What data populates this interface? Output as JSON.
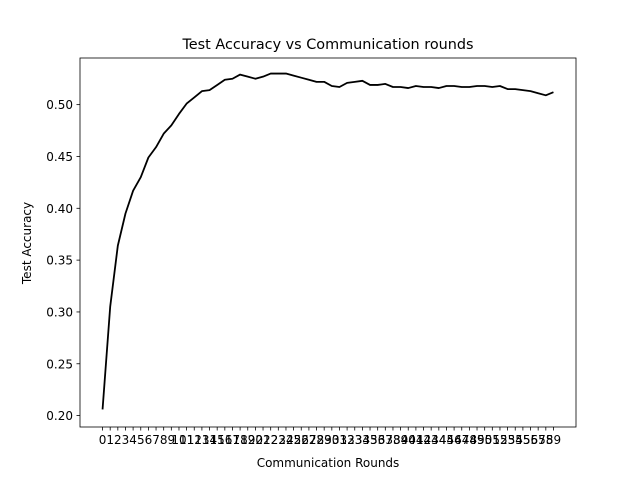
{
  "chart_data": {
    "type": "line",
    "title": "Test Accuracy vs Communication rounds",
    "xlabel": "Communication Rounds",
    "ylabel": "Test Accuracy",
    "x": [
      0,
      1,
      2,
      3,
      4,
      5,
      6,
      7,
      8,
      9,
      10,
      11,
      12,
      13,
      14,
      15,
      16,
      17,
      18,
      19,
      20,
      21,
      22,
      23,
      24,
      25,
      26,
      27,
      28,
      29,
      30,
      31,
      32,
      33,
      34,
      35,
      36,
      37,
      38,
      39,
      40,
      41,
      42,
      43,
      44,
      45,
      46,
      47,
      48,
      49,
      50,
      51,
      52,
      53,
      54,
      55,
      56,
      57,
      58,
      59
    ],
    "xticks": [
      "0",
      "1",
      "2",
      "3",
      "4",
      "5",
      "6",
      "7",
      "8",
      "9",
      "10",
      "11",
      "12",
      "13",
      "14",
      "15",
      "16",
      "17",
      "18",
      "19",
      "20",
      "21",
      "22",
      "23",
      "24",
      "25",
      "26",
      "27",
      "28",
      "29",
      "30",
      "31",
      "32",
      "33",
      "34",
      "35",
      "36",
      "37",
      "38",
      "39",
      "40",
      "41",
      "42",
      "43",
      "44",
      "45",
      "46",
      "47",
      "48",
      "49",
      "50",
      "51",
      "52",
      "53",
      "54",
      "55",
      "56",
      "57",
      "58",
      "59"
    ],
    "yticks": [
      0.2,
      0.25,
      0.3,
      0.35,
      0.4,
      0.45,
      0.5
    ],
    "ytick_labels": [
      "0.20",
      "0.25",
      "0.30",
      "0.35",
      "0.40",
      "0.45",
      "0.50"
    ],
    "ylim": [
      0.189,
      0.545
    ],
    "xlim": [
      -2.95,
      61.95
    ],
    "series": [
      {
        "color": "#000000",
        "values": [
          0.206,
          0.305,
          0.364,
          0.395,
          0.417,
          0.43,
          0.449,
          0.459,
          0.472,
          0.48,
          0.491,
          0.501,
          0.507,
          0.513,
          0.514,
          0.519,
          0.524,
          0.525,
          0.529,
          0.527,
          0.525,
          0.527,
          0.53,
          0.53,
          0.53,
          0.528,
          0.526,
          0.524,
          0.522,
          0.522,
          0.518,
          0.517,
          0.521,
          0.522,
          0.523,
          0.519,
          0.519,
          0.52,
          0.517,
          0.517,
          0.516,
          0.518,
          0.517,
          0.517,
          0.516,
          0.518,
          0.518,
          0.517,
          0.517,
          0.518,
          0.518,
          0.517,
          0.518,
          0.515,
          0.515,
          0.514,
          0.513,
          0.511,
          0.509,
          0.512
        ]
      }
    ],
    "grid": false,
    "legend": "none"
  }
}
